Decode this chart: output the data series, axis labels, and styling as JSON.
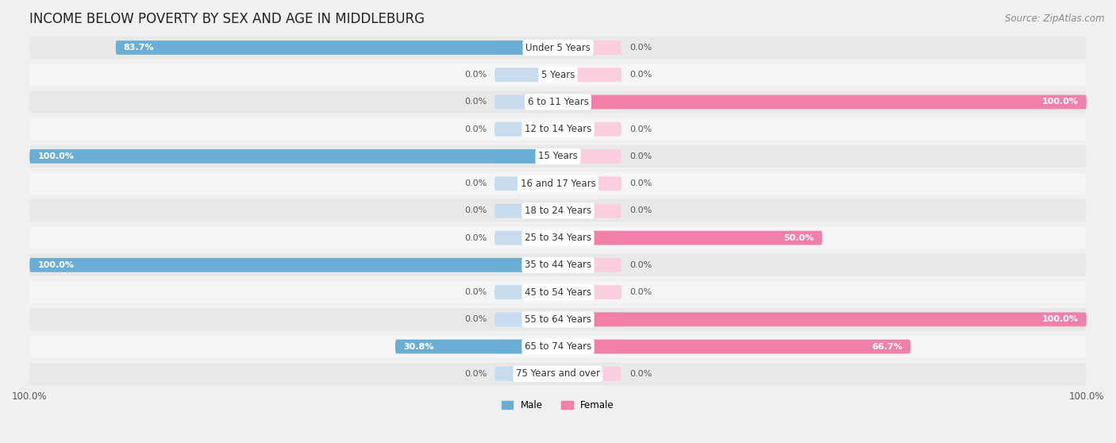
{
  "title": "INCOME BELOW POVERTY BY SEX AND AGE IN MIDDLEBURG",
  "source": "Source: ZipAtlas.com",
  "categories": [
    "Under 5 Years",
    "5 Years",
    "6 to 11 Years",
    "12 to 14 Years",
    "15 Years",
    "16 and 17 Years",
    "18 to 24 Years",
    "25 to 34 Years",
    "35 to 44 Years",
    "45 to 54 Years",
    "55 to 64 Years",
    "65 to 74 Years",
    "75 Years and over"
  ],
  "male": [
    83.7,
    0.0,
    0.0,
    0.0,
    100.0,
    0.0,
    0.0,
    0.0,
    100.0,
    0.0,
    0.0,
    30.8,
    0.0
  ],
  "female": [
    0.0,
    0.0,
    100.0,
    0.0,
    0.0,
    0.0,
    0.0,
    50.0,
    0.0,
    0.0,
    100.0,
    66.7,
    0.0
  ],
  "male_color": "#6aaed6",
  "female_color": "#f07faa",
  "male_bg_color": "#c6dcee",
  "female_bg_color": "#f9cfe0",
  "bar_height": 0.52,
  "xlim": 100,
  "background_color": "#f0f0f0",
  "row_color_odd": "#e8e8e8",
  "row_color_even": "#f5f5f5",
  "title_fontsize": 12,
  "label_fontsize": 8.5,
  "tick_fontsize": 8.5,
  "source_fontsize": 8.5,
  "value_fontsize": 8.0
}
